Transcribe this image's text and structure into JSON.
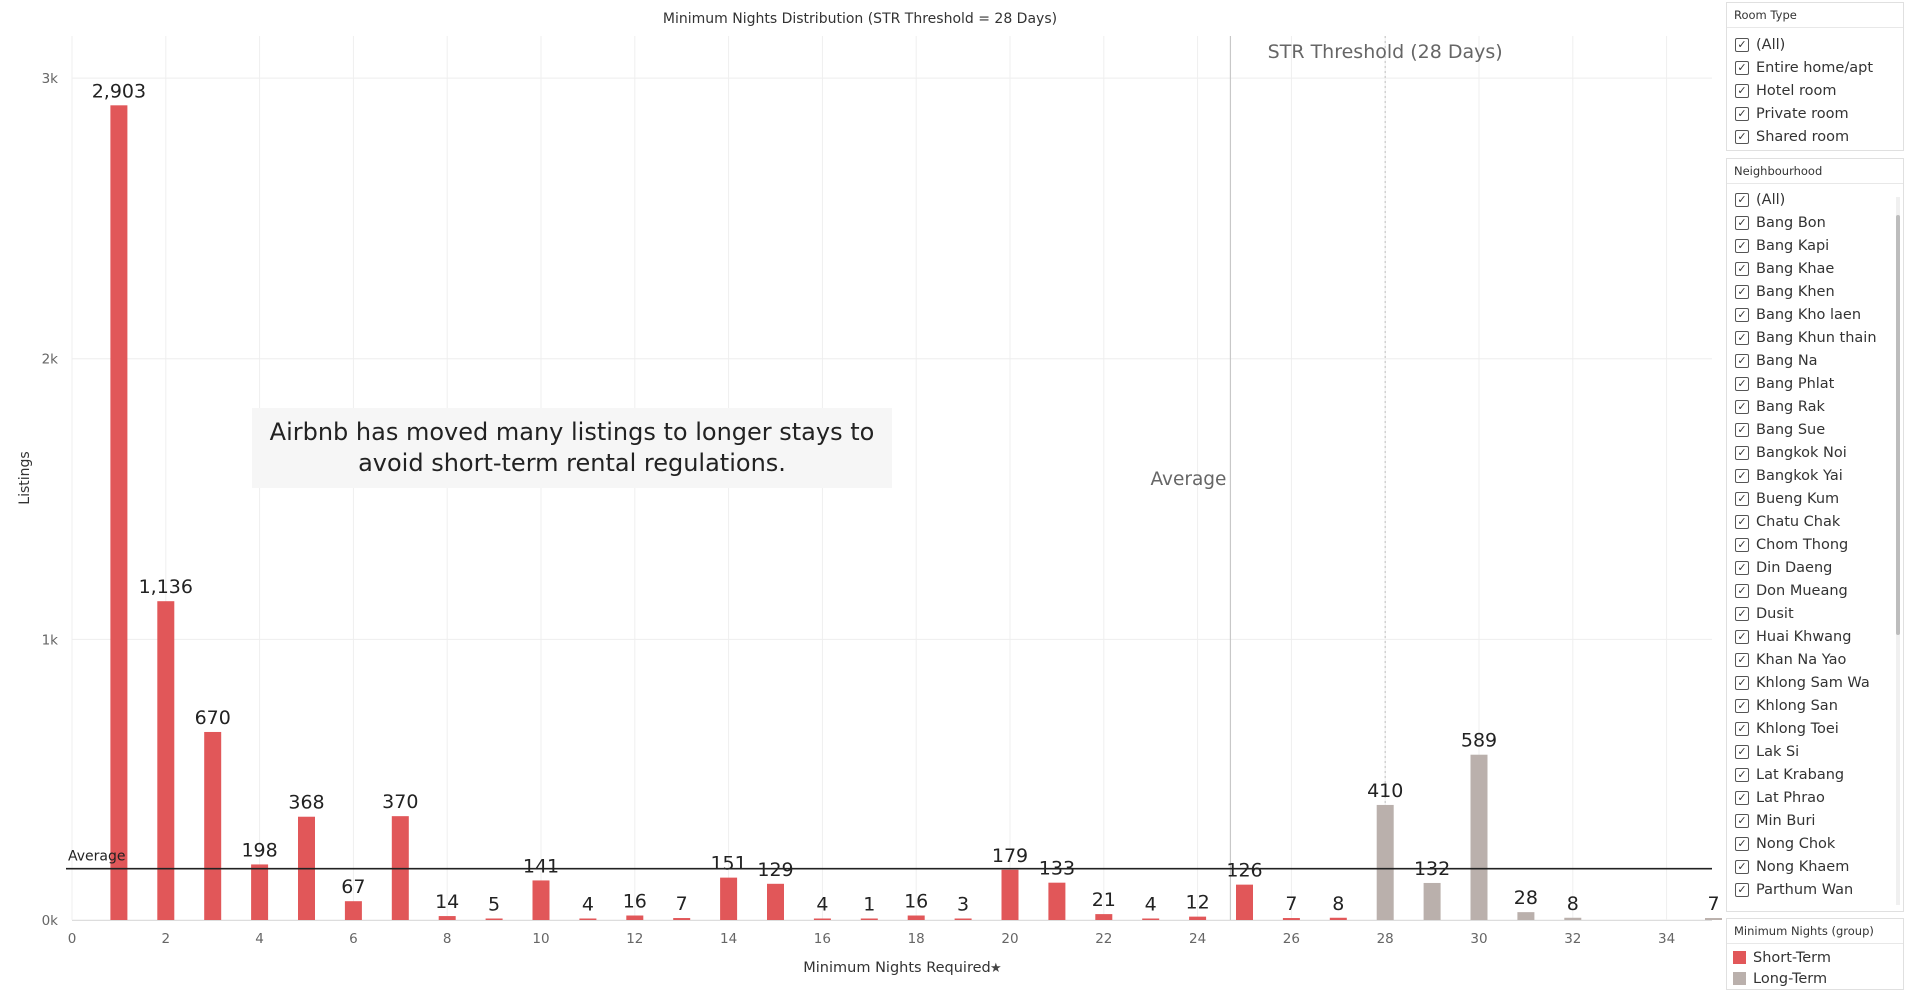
{
  "chart_data": {
    "type": "bar",
    "title": "Minimum Nights Distribution (STR Threshold = 28 Days)",
    "xlabel": "Minimum Nights Required",
    "ylabel": "Listings",
    "xlim": [
      0,
      35
    ],
    "ylim": [
      0,
      3000
    ],
    "x_ticks": [
      0,
      2,
      4,
      6,
      8,
      10,
      12,
      14,
      16,
      18,
      20,
      22,
      24,
      26,
      28,
      30,
      32,
      34
    ],
    "y_ticks": [
      {
        "value": 0,
        "label": "0k"
      },
      {
        "value": 1000,
        "label": "1k"
      },
      {
        "value": 2000,
        "label": "2k"
      },
      {
        "value": 3000,
        "label": "3k"
      }
    ],
    "grid": true,
    "bars": [
      {
        "x": 1,
        "value": 2903,
        "label": "2,903",
        "group": "Short-Term"
      },
      {
        "x": 2,
        "value": 1136,
        "label": "1,136",
        "group": "Short-Term"
      },
      {
        "x": 3,
        "value": 670,
        "label": "670",
        "group": "Short-Term"
      },
      {
        "x": 4,
        "value": 198,
        "label": "198",
        "group": "Short-Term"
      },
      {
        "x": 5,
        "value": 368,
        "label": "368",
        "group": "Short-Term"
      },
      {
        "x": 6,
        "value": 67,
        "label": "67",
        "group": "Short-Term"
      },
      {
        "x": 7,
        "value": 370,
        "label": "370",
        "group": "Short-Term"
      },
      {
        "x": 8,
        "value": 14,
        "label": "14",
        "group": "Short-Term"
      },
      {
        "x": 9,
        "value": 5,
        "label": "5",
        "group": "Short-Term"
      },
      {
        "x": 10,
        "value": 141,
        "label": "141",
        "group": "Short-Term"
      },
      {
        "x": 11,
        "value": 4,
        "label": "4",
        "group": "Short-Term"
      },
      {
        "x": 12,
        "value": 16,
        "label": "16",
        "group": "Short-Term"
      },
      {
        "x": 13,
        "value": 7,
        "label": "7",
        "group": "Short-Term"
      },
      {
        "x": 14,
        "value": 151,
        "label": "151",
        "group": "Short-Term"
      },
      {
        "x": 15,
        "value": 129,
        "label": "129",
        "group": "Short-Term"
      },
      {
        "x": 16,
        "value": 4,
        "label": "4",
        "group": "Short-Term"
      },
      {
        "x": 17,
        "value": 1,
        "label": "1",
        "group": "Short-Term"
      },
      {
        "x": 18,
        "value": 16,
        "label": "16",
        "group": "Short-Term"
      },
      {
        "x": 19,
        "value": 3,
        "label": "3",
        "group": "Short-Term"
      },
      {
        "x": 20,
        "value": 179,
        "label": "179",
        "group": "Short-Term"
      },
      {
        "x": 21,
        "value": 133,
        "label": "133",
        "group": "Short-Term"
      },
      {
        "x": 22,
        "value": 21,
        "label": "21",
        "group": "Short-Term"
      },
      {
        "x": 23,
        "value": 4,
        "label": "4",
        "group": "Short-Term"
      },
      {
        "x": 24,
        "value": 12,
        "label": "12",
        "group": "Short-Term"
      },
      {
        "x": 25,
        "value": 126,
        "label": "126",
        "group": "Short-Term"
      },
      {
        "x": 26,
        "value": 7,
        "label": "7",
        "group": "Short-Term"
      },
      {
        "x": 27,
        "value": 8,
        "label": "8",
        "group": "Short-Term"
      },
      {
        "x": 28,
        "value": 410,
        "label": "410",
        "group": "Long-Term"
      },
      {
        "x": 29,
        "value": 132,
        "label": "132",
        "group": "Long-Term"
      },
      {
        "x": 30,
        "value": 589,
        "label": "589",
        "group": "Long-Term"
      },
      {
        "x": 31,
        "value": 28,
        "label": "28",
        "group": "Long-Term"
      },
      {
        "x": 32,
        "value": 8,
        "label": "8",
        "group": "Long-Term"
      },
      {
        "x": 35,
        "value": 7,
        "label": "7",
        "group": "Long-Term"
      }
    ],
    "reference_lines": [
      {
        "axis": "y",
        "value": 183,
        "label": "Average",
        "color": "#222222"
      },
      {
        "axis": "x",
        "value": 24.7,
        "label": "Average",
        "color": "#c8c8c8"
      },
      {
        "axis": "x",
        "value": 28,
        "label": "STR Threshold (28 Days)",
        "color": "#c8c8c8",
        "dashed": true
      }
    ],
    "annotation": "Airbnb has moved many listings to longer stays to\navoid short-term rental regulations.",
    "colors": {
      "Short-Term": "#e15759",
      "Long-Term": "#bab0ac"
    },
    "legend_position": "right"
  },
  "filters": {
    "room_type": {
      "title": "Room Type",
      "items": [
        "(All)",
        "Entire home/apt",
        "Hotel room",
        "Private room",
        "Shared room"
      ]
    },
    "neighbourhood": {
      "title": "Neighbourhood",
      "items": [
        "(All)",
        "Bang Bon",
        "Bang Kapi",
        "Bang Khae",
        "Bang Khen",
        "Bang Kho laen",
        "Bang Khun thain",
        "Bang Na",
        "Bang Phlat",
        "Bang Rak",
        "Bang Sue",
        "Bangkok Noi",
        "Bangkok Yai",
        "Bueng Kum",
        "Chatu Chak",
        "Chom Thong",
        "Din Daeng",
        "Don Mueang",
        "Dusit",
        "Huai Khwang",
        "Khan Na Yao",
        "Khlong Sam Wa",
        "Khlong San",
        "Khlong Toei",
        "Lak Si",
        "Lat Krabang",
        "Lat Phrao",
        "Min Buri",
        "Nong Chok",
        "Nong Khaem",
        "Parthum Wan"
      ]
    }
  },
  "legend": {
    "title": "Minimum Nights (group)",
    "items": [
      {
        "label": "Short-Term",
        "color": "#e15759"
      },
      {
        "label": "Long-Term",
        "color": "#bab0ac"
      }
    ]
  },
  "icons": {
    "checkbox": "check-icon",
    "pin": "pin-icon"
  }
}
